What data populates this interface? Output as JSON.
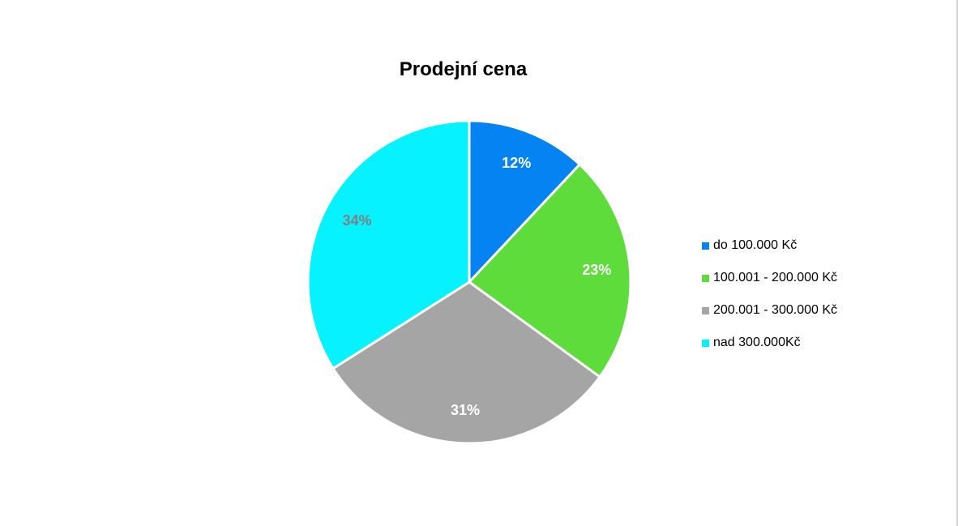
{
  "chart_data": {
    "type": "pie",
    "title": "Prodejní cena",
    "categories": [
      "do 100.000 Kč",
      "100.001 - 200.000 Kč",
      "200.001 - 300.000 Kč",
      "nad 300.000Kč"
    ],
    "values": [
      12,
      23,
      31,
      34
    ],
    "data_labels": [
      "12%",
      "23%",
      "31%",
      "34%"
    ],
    "colors": [
      "#0583F2",
      "#5EDC3C",
      "#A5A5A5",
      "#06F2FF"
    ],
    "label_colors": [
      "#FFFFFF",
      "#FFFFFF",
      "#FFFFFF",
      "#808080"
    ],
    "legend": {
      "position": "right"
    }
  }
}
